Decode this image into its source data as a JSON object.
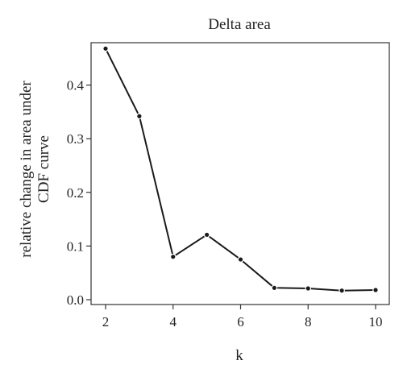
{
  "chart_data": {
    "type": "line",
    "title": "Delta area",
    "xlabel": "k",
    "ylabel_lines": [
      "relative change in area under",
      "CDF curve"
    ],
    "x": [
      2,
      3,
      4,
      5,
      6,
      7,
      8,
      9,
      10
    ],
    "values": [
      0.468,
      0.342,
      0.08,
      0.121,
      0.075,
      0.022,
      0.021,
      0.017,
      0.018
    ],
    "xlim": [
      2,
      10
    ],
    "ylim": [
      0,
      0.5
    ],
    "xticks": [
      2,
      4,
      6,
      8,
      10
    ],
    "xtick_labels": [
      "2",
      "4",
      "6",
      "8",
      "10"
    ],
    "yticks": [
      0.0,
      0.1,
      0.2,
      0.3,
      0.4
    ],
    "ytick_labels": [
      "0.0",
      "0.1",
      "0.2",
      "0.3",
      "0.4"
    ],
    "grid": false,
    "legend": false,
    "line_color": "#1a1a1a"
  }
}
